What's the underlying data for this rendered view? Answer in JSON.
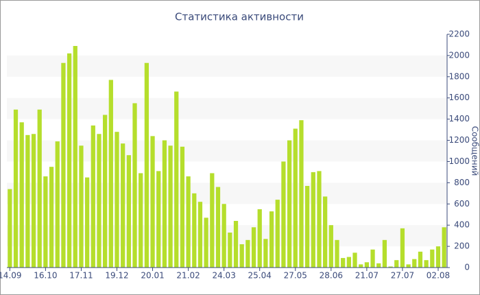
{
  "chart_data": {
    "type": "bar",
    "title": "Статистика активности",
    "y_axis_label": "Сообщений",
    "categories": [
      "14.09",
      null,
      null,
      null,
      null,
      null,
      "16.10",
      null,
      null,
      null,
      null,
      null,
      "17.11",
      null,
      null,
      null,
      null,
      null,
      "19.12",
      null,
      null,
      null,
      null,
      null,
      "20.01",
      null,
      null,
      null,
      null,
      null,
      "21.02",
      null,
      null,
      null,
      null,
      null,
      "24.03",
      null,
      null,
      null,
      null,
      null,
      "25.04",
      null,
      null,
      null,
      null,
      null,
      "27.05",
      null,
      null,
      null,
      null,
      null,
      "28.06",
      null,
      null,
      null,
      null,
      null,
      "21.07",
      null,
      null,
      null,
      null,
      null,
      "27.07",
      null,
      null,
      null,
      null,
      null,
      "02.08",
      null
    ],
    "values": [
      740,
      1490,
      1370,
      1250,
      1260,
      1490,
      860,
      950,
      1190,
      1930,
      2020,
      2090,
      1150,
      850,
      1340,
      1260,
      1440,
      1770,
      1280,
      1170,
      1060,
      1550,
      890,
      1930,
      1240,
      910,
      1200,
      1150,
      1660,
      1140,
      860,
      700,
      620,
      470,
      890,
      760,
      600,
      330,
      440,
      220,
      260,
      380,
      550,
      270,
      530,
      640,
      1000,
      1200,
      1310,
      1390,
      770,
      900,
      910,
      670,
      400,
      260,
      90,
      100,
      140,
      30,
      50,
      170,
      40,
      260,
      10,
      70,
      370,
      30,
      80,
      150,
      70,
      170,
      200,
      380
    ],
    "color": "#b5de2c",
    "ylim": [
      0,
      2200
    ],
    "yticks": [
      0,
      200,
      400,
      600,
      800,
      1000,
      1200,
      1400,
      1600,
      1800,
      2000,
      2200
    ],
    "alternate_bands": true,
    "band_color": "#f7f7f7"
  }
}
